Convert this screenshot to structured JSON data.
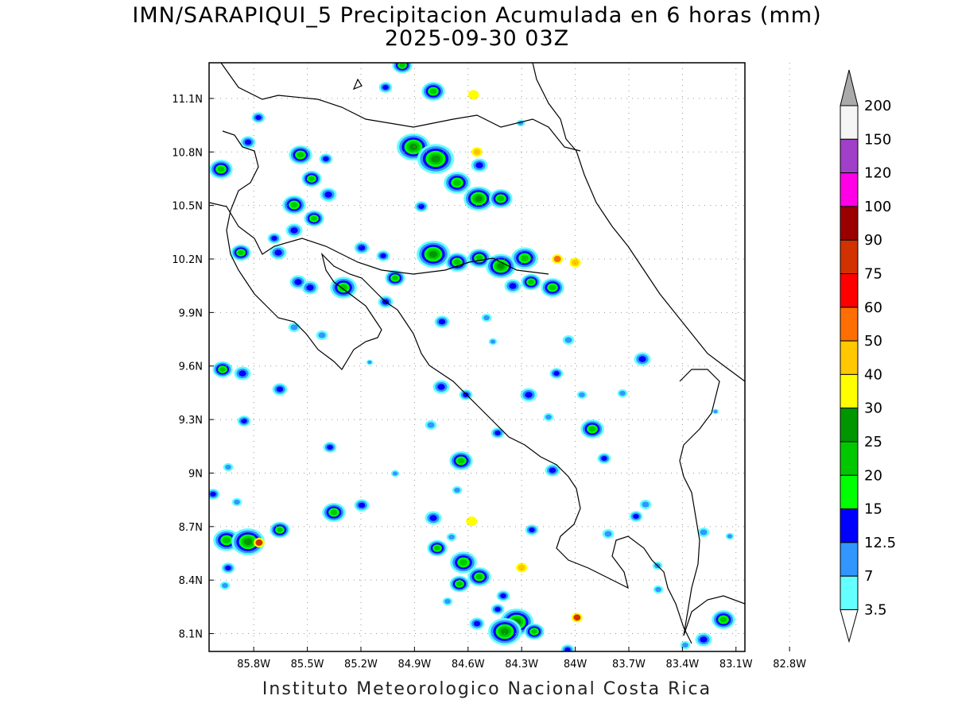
{
  "title": {
    "line1": "IMN/SARAPIQUI_5 Precipitacion Acumulada en 6 horas (mm)",
    "line2": "2025-09-30 03Z"
  },
  "footer": "Instituto Meteorologico Nacional Costa Rica",
  "axes": {
    "lon_ticks": [
      "85.8W",
      "85.5W",
      "85.2W",
      "84.9W",
      "84.6W",
      "84.3W",
      "84W",
      "83.7W",
      "83.4W",
      "83.1W",
      "82.8W"
    ],
    "lat_ticks": [
      "11.1N",
      "10.8N",
      "10.5N",
      "10.2N",
      "9.9N",
      "9.6N",
      "9.3N",
      "9N",
      "8.7N",
      "8.4N",
      "8.1N"
    ],
    "lon_range": [
      -86.05,
      -83.05
    ],
    "lat_range": [
      8.0,
      11.3
    ],
    "grid": "dotted"
  },
  "colorbar": {
    "labels": [
      "200",
      "150",
      "120",
      "100",
      "90",
      "75",
      "60",
      "50",
      "40",
      "30",
      "25",
      "20",
      "15",
      "12.5",
      "7",
      "3.5"
    ],
    "colors": [
      "#aaaaaa",
      "#f5f5f5",
      "#a040c8",
      "#ff00e6",
      "#9b0000",
      "#d23200",
      "#ff0000",
      "#ff6e00",
      "#ffc800",
      "#ffff00",
      "#009600",
      "#00c800",
      "#00ff00",
      "#0000ff",
      "#3296ff",
      "#64ffff"
    ]
  },
  "precip_cells": [
    {
      "lon": -85.77,
      "lat": 8.61,
      "max": 75
    },
    {
      "lon": -83.99,
      "lat": 8.19,
      "max": 75
    },
    {
      "lon": -84.1,
      "lat": 10.2,
      "max": 50
    },
    {
      "lon": -84.55,
      "lat": 10.8,
      "max": 40
    },
    {
      "lon": -84.0,
      "lat": 10.18,
      "max": 40
    },
    {
      "lon": -84.3,
      "lat": 8.47,
      "max": 40
    },
    {
      "lon": -84.58,
      "lat": 8.73,
      "max": 30
    },
    {
      "lon": -84.57,
      "lat": 11.12,
      "max": 30
    }
  ]
}
